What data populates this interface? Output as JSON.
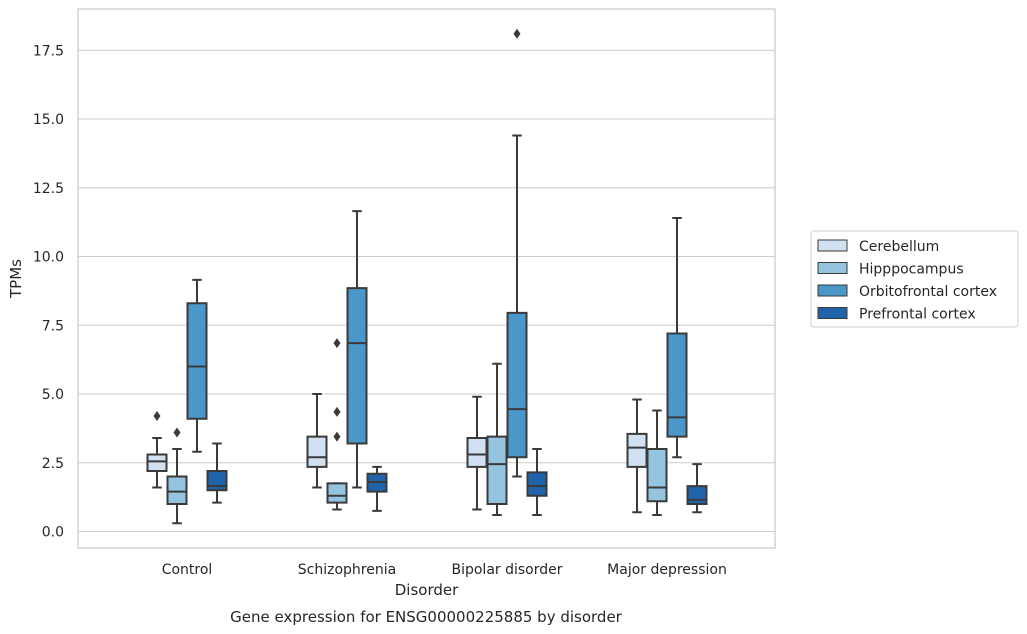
{
  "chart_data": {
    "type": "box",
    "title": "",
    "caption": "Gene expression for ENSG00000225885 by disorder",
    "xlabel": "Disorder",
    "ylabel": "TPMs",
    "ylim": [
      -0.6,
      19.0
    ],
    "yticks": [
      0.0,
      2.5,
      5.0,
      7.5,
      10.0,
      12.5,
      15.0,
      17.5
    ],
    "ytick_labels": [
      "0.0",
      "2.5",
      "5.0",
      "7.5",
      "10.0",
      "12.5",
      "15.0",
      "17.5"
    ],
    "grid": "horizontal",
    "legend_position": "right",
    "categories": [
      "Control",
      "Schizophrenia",
      "Bipolar disorder",
      "Major depression"
    ],
    "series": [
      {
        "name": "Cerebellum",
        "color": "#d0e1f2",
        "boxes": [
          {
            "min": 1.6,
            "q1": 2.2,
            "median": 2.55,
            "q3": 2.8,
            "max": 3.4,
            "outliers": [
              4.2
            ]
          },
          {
            "min": 1.6,
            "q1": 2.35,
            "median": 2.7,
            "q3": 3.45,
            "max": 5.0,
            "outliers": []
          },
          {
            "min": 0.8,
            "q1": 2.35,
            "median": 2.8,
            "q3": 3.4,
            "max": 4.9,
            "outliers": []
          },
          {
            "min": 0.7,
            "q1": 2.35,
            "median": 3.05,
            "q3": 3.55,
            "max": 4.8,
            "outliers": []
          }
        ]
      },
      {
        "name": "Hipppocampus",
        "color": "#94c4df",
        "boxes": [
          {
            "min": 0.3,
            "q1": 1.0,
            "median": 1.45,
            "q3": 2.0,
            "max": 3.0,
            "outliers": [
              3.6
            ]
          },
          {
            "min": 0.8,
            "q1": 1.05,
            "median": 1.3,
            "q3": 1.75,
            "max": 1.75,
            "outliers": [
              3.45,
              4.35,
              6.85
            ]
          },
          {
            "min": 0.6,
            "q1": 1.0,
            "median": 2.45,
            "q3": 3.45,
            "max": 6.1,
            "outliers": []
          },
          {
            "min": 0.6,
            "q1": 1.1,
            "median": 1.6,
            "q3": 3.0,
            "max": 4.4,
            "outliers": []
          }
        ]
      },
      {
        "name": "Orbitofrontal cortex",
        "color": "#4a98c9",
        "boxes": [
          {
            "min": 2.9,
            "q1": 4.1,
            "median": 6.0,
            "q3": 8.3,
            "max": 9.15,
            "outliers": []
          },
          {
            "min": 1.6,
            "q1": 3.2,
            "median": 6.85,
            "q3": 8.85,
            "max": 11.65,
            "outliers": []
          },
          {
            "min": 2.0,
            "q1": 2.7,
            "median": 4.45,
            "q3": 7.95,
            "max": 14.4,
            "outliers": [
              18.1
            ]
          },
          {
            "min": 2.7,
            "q1": 3.45,
            "median": 4.15,
            "q3": 7.2,
            "max": 11.4,
            "outliers": []
          }
        ]
      },
      {
        "name": "Prefrontal cortex",
        "color": "#2163aa",
        "boxes": [
          {
            "min": 1.05,
            "q1": 1.5,
            "median": 1.65,
            "q3": 2.2,
            "max": 3.2,
            "outliers": []
          },
          {
            "min": 0.75,
            "q1": 1.45,
            "median": 1.8,
            "q3": 2.1,
            "max": 2.35,
            "outliers": []
          },
          {
            "min": 0.6,
            "q1": 1.3,
            "median": 1.65,
            "q3": 2.15,
            "max": 3.0,
            "outliers": []
          },
          {
            "min": 0.7,
            "q1": 1.0,
            "median": 1.15,
            "q3": 1.65,
            "max": 2.45,
            "outliers": []
          }
        ]
      }
    ]
  }
}
